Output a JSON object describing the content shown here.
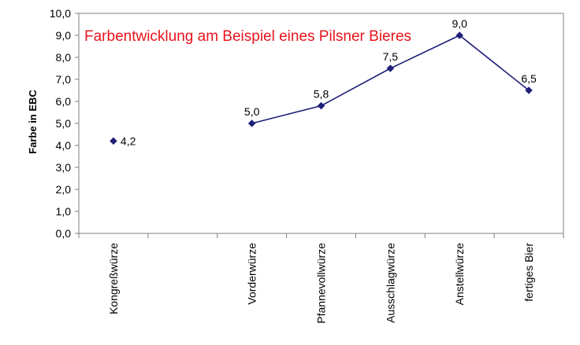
{
  "chart_data": {
    "type": "line",
    "title": "Farbentwicklung am Beispiel eines Pilsner Bieres",
    "ylabel": "Farbe in EBC",
    "xlabel": "",
    "ylim": [
      0,
      10
    ],
    "y_ticks": [
      "0,0",
      "1,0",
      "2,0",
      "3,0",
      "4,0",
      "5,0",
      "6,0",
      "7,0",
      "8,0",
      "9,0",
      "10,0"
    ],
    "categories": [
      "Kongreßwürze",
      "",
      "Vorderwürze",
      "Pfannevollwürze",
      "Ausschlagwürze",
      "Anstellwürze",
      "fertiges Bier"
    ],
    "values": [
      4.2,
      null,
      5.0,
      5.8,
      7.5,
      9.0,
      6.5
    ],
    "data_labels": [
      "4,2",
      "",
      "5,0",
      "5,8",
      "7,5",
      "9,0",
      "6,5"
    ],
    "grid": false,
    "legend": "none",
    "colors": {
      "series": "#1f1f7a",
      "title": "#e8141c",
      "axis": "#7f7f7f"
    }
  }
}
